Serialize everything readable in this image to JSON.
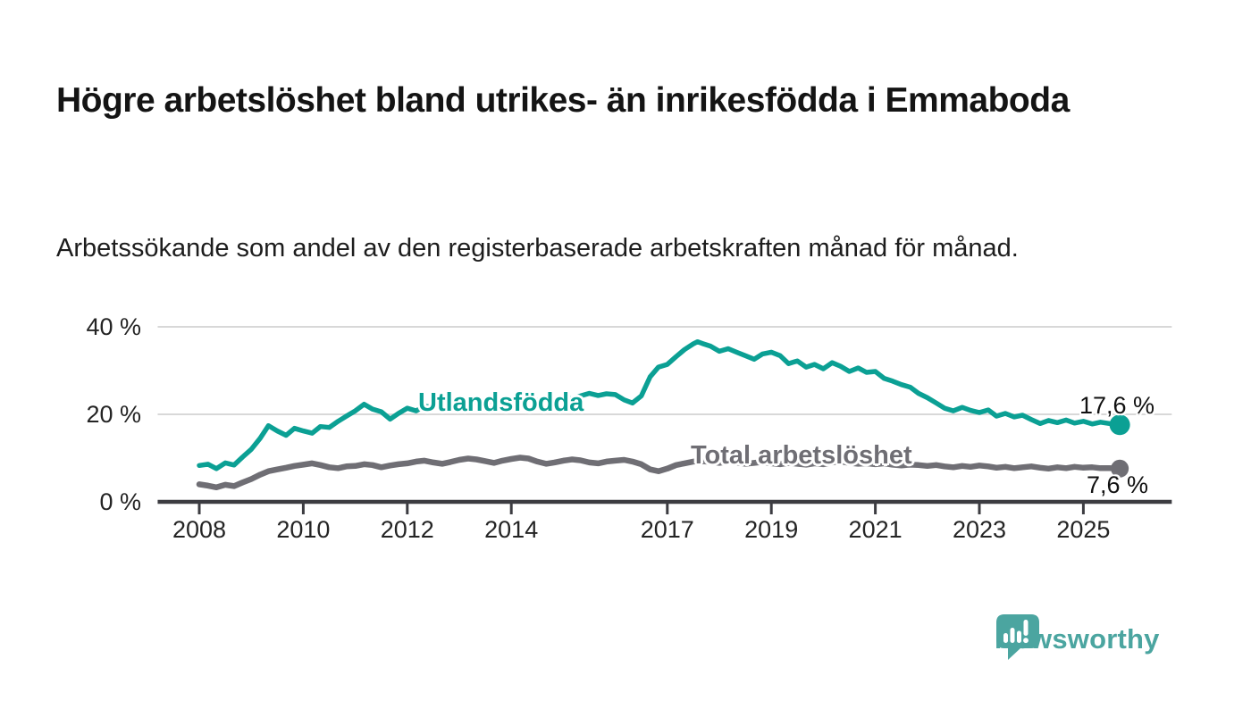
{
  "title": "Högre arbetslöshet bland utrikes- än inrikesfödda i Emmaboda",
  "subtitle": "Arbetssökande som andel av den registerbaserade arbetskraften månad för månad.",
  "branding": {
    "wordmark": "Newsworthy",
    "logo_color": "#4BA5A0"
  },
  "chart_data": {
    "type": "line",
    "title": "",
    "xlabel": "",
    "ylabel": "",
    "grid": "horizontal-y-only",
    "legend_position": "inline-on-lines",
    "xlim": [
      2007.2,
      2026.7
    ],
    "ylim": [
      0,
      44
    ],
    "x_ticks": {
      "values": [
        2008,
        2010,
        2012,
        2014,
        2017,
        2019,
        2021,
        2023,
        2025
      ],
      "labels": [
        "2008",
        "2010",
        "2012",
        "2014",
        "2017",
        "2019",
        "2021",
        "2023",
        "2025"
      ]
    },
    "y_ticks": {
      "values": [
        0,
        20,
        40
      ],
      "labels": [
        "0 %",
        "20 %",
        "40 %"
      ]
    },
    "series": [
      {
        "name": "Utlandsfödda",
        "color": "#0BA094",
        "end_label": "17,6 %",
        "end_value": 17.6,
        "x": [
          2008.0,
          2008.17,
          2008.33,
          2008.5,
          2008.67,
          2008.83,
          2009.0,
          2009.17,
          2009.33,
          2009.5,
          2009.67,
          2009.83,
          2010.0,
          2010.17,
          2010.33,
          2010.5,
          2010.67,
          2010.83,
          2011.0,
          2011.17,
          2011.33,
          2011.5,
          2011.67,
          2011.83,
          2012.0,
          2012.17,
          2012.33,
          2012.5,
          2012.67,
          2012.83,
          2013.0,
          2013.17,
          2013.33,
          2013.5,
          2013.67,
          2013.83,
          2014.0,
          2014.17,
          2014.33,
          2014.5,
          2014.67,
          2014.83,
          2015.0,
          2015.17,
          2015.33,
          2015.5,
          2015.67,
          2015.83,
          2016.0,
          2016.17,
          2016.33,
          2016.5,
          2016.67,
          2016.83,
          2017.0,
          2017.17,
          2017.33,
          2017.5,
          2017.58,
          2017.67,
          2017.83,
          2018.0,
          2018.17,
          2018.33,
          2018.5,
          2018.67,
          2018.83,
          2019.0,
          2019.17,
          2019.33,
          2019.5,
          2019.67,
          2019.83,
          2020.0,
          2020.17,
          2020.33,
          2020.5,
          2020.67,
          2020.83,
          2021.0,
          2021.17,
          2021.33,
          2021.5,
          2021.67,
          2021.83,
          2022.0,
          2022.17,
          2022.33,
          2022.5,
          2022.67,
          2022.83,
          2023.0,
          2023.17,
          2023.33,
          2023.5,
          2023.67,
          2023.83,
          2024.0,
          2024.17,
          2024.33,
          2024.5,
          2024.67,
          2024.83,
          2025.0,
          2025.17,
          2025.33,
          2025.5,
          2025.7
        ],
        "values": [
          8.3,
          8.6,
          7.6,
          8.9,
          8.4,
          10.2,
          12.0,
          14.5,
          17.4,
          16.2,
          15.2,
          16.8,
          16.2,
          15.7,
          17.2,
          17.0,
          18.4,
          19.6,
          20.8,
          22.3,
          21.2,
          20.6,
          18.9,
          20.2,
          21.4,
          20.8,
          21.9,
          21.6,
          22.3,
          21.8,
          22.6,
          22.2,
          23.0,
          22.5,
          23.2,
          22.8,
          23.4,
          22.9,
          23.6,
          23.1,
          23.8,
          23.3,
          23.9,
          23.5,
          24.2,
          24.8,
          24.3,
          24.7,
          24.5,
          23.3,
          22.6,
          24.2,
          28.6,
          30.8,
          31.4,
          33.2,
          34.8,
          36.1,
          36.6,
          36.2,
          35.6,
          34.4,
          35.0,
          34.2,
          33.4,
          32.6,
          33.8,
          34.2,
          33.4,
          31.6,
          32.2,
          30.8,
          31.4,
          30.4,
          31.8,
          31.0,
          29.8,
          30.6,
          29.6,
          29.8,
          28.2,
          27.6,
          26.8,
          26.2,
          24.8,
          23.8,
          22.6,
          21.4,
          20.8,
          21.6,
          20.9,
          20.4,
          21.0,
          19.6,
          20.2,
          19.4,
          19.8,
          18.8,
          17.9,
          18.6,
          18.1,
          18.7,
          18.0,
          18.4,
          17.8,
          18.2,
          17.9,
          17.6
        ]
      },
      {
        "name": "Total arbetslöshet",
        "color": "#6F6E74",
        "end_label": "7,6 %",
        "end_value": 7.6,
        "x": [
          2008.0,
          2008.17,
          2008.33,
          2008.5,
          2008.67,
          2008.83,
          2009.0,
          2009.17,
          2009.33,
          2009.5,
          2009.67,
          2009.83,
          2010.0,
          2010.17,
          2010.33,
          2010.5,
          2010.67,
          2010.83,
          2011.0,
          2011.17,
          2011.33,
          2011.5,
          2011.67,
          2011.83,
          2012.0,
          2012.17,
          2012.33,
          2012.5,
          2012.67,
          2012.83,
          2013.0,
          2013.17,
          2013.33,
          2013.5,
          2013.67,
          2013.83,
          2014.0,
          2014.17,
          2014.33,
          2014.5,
          2014.67,
          2014.83,
          2015.0,
          2015.17,
          2015.33,
          2015.5,
          2015.67,
          2015.83,
          2016.0,
          2016.17,
          2016.33,
          2016.5,
          2016.67,
          2016.83,
          2017.0,
          2017.17,
          2017.33,
          2017.5,
          2017.67,
          2017.83,
          2018.0,
          2018.17,
          2018.33,
          2018.5,
          2018.67,
          2018.83,
          2019.0,
          2019.17,
          2019.33,
          2019.5,
          2019.67,
          2019.83,
          2020.0,
          2020.17,
          2020.33,
          2020.5,
          2020.67,
          2020.83,
          2021.0,
          2021.17,
          2021.33,
          2021.5,
          2021.67,
          2021.83,
          2022.0,
          2022.17,
          2022.33,
          2022.5,
          2022.67,
          2022.83,
          2023.0,
          2023.17,
          2023.33,
          2023.5,
          2023.67,
          2023.83,
          2024.0,
          2024.17,
          2024.33,
          2024.5,
          2024.67,
          2024.83,
          2025.0,
          2025.17,
          2025.33,
          2025.5,
          2025.7
        ],
        "values": [
          4.0,
          3.7,
          3.3,
          3.9,
          3.6,
          4.4,
          5.2,
          6.2,
          7.0,
          7.4,
          7.8,
          8.2,
          8.5,
          8.8,
          8.4,
          7.9,
          7.7,
          8.1,
          8.2,
          8.6,
          8.4,
          7.9,
          8.3,
          8.6,
          8.8,
          9.2,
          9.4,
          9.0,
          8.7,
          9.1,
          9.6,
          9.9,
          9.7,
          9.3,
          8.9,
          9.4,
          9.8,
          10.1,
          9.9,
          9.2,
          8.7,
          9.0,
          9.4,
          9.7,
          9.5,
          9.0,
          8.8,
          9.2,
          9.4,
          9.6,
          9.2,
          8.6,
          7.4,
          7.0,
          7.6,
          8.4,
          8.8,
          9.2,
          9.3,
          9.1,
          8.9,
          9.2,
          9.0,
          8.7,
          8.9,
          9.1,
          8.8,
          8.6,
          8.9,
          8.7,
          8.5,
          8.8,
          8.6,
          9.0,
          9.2,
          8.9,
          8.7,
          8.8,
          8.6,
          8.8,
          8.5,
          8.3,
          8.5,
          8.4,
          8.2,
          8.4,
          8.1,
          7.9,
          8.2,
          8.0,
          8.3,
          8.1,
          7.8,
          8.0,
          7.7,
          7.9,
          8.1,
          7.8,
          7.6,
          7.9,
          7.7,
          8.0,
          7.8,
          7.9,
          7.7,
          7.7,
          7.6
        ]
      }
    ]
  }
}
